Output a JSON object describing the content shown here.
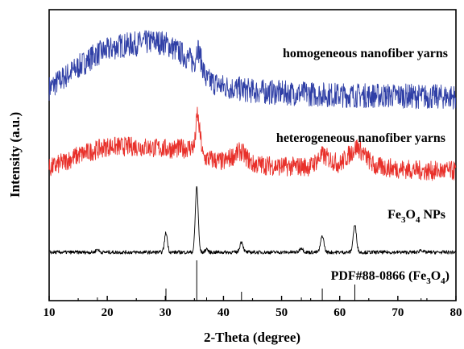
{
  "chart_data": {
    "type": "line",
    "xlabel": "2-Theta (degree)",
    "ylabel": "Intensity (a.u.)",
    "xlim": [
      10,
      80
    ],
    "x_ticks": [
      "10",
      "20",
      "30",
      "40",
      "50",
      "60",
      "70",
      "80"
    ],
    "grid": false,
    "legend": "none (series labelled inline above each trace)",
    "series": [
      {
        "name": "homogeneous nanofiber yarns",
        "name_parts": [
          {
            "t": "homogeneous nanofiber yarns",
            "sub": false
          }
        ],
        "color": "#2f3fa6",
        "noise_amplitude": 0.22,
        "x": [
          10,
          14,
          18,
          22,
          26,
          28,
          30,
          33,
          35,
          35.5,
          37,
          40,
          45,
          50,
          55,
          60,
          65,
          70,
          75,
          80
        ],
        "y": [
          0.15,
          0.45,
          0.75,
          0.9,
          0.95,
          0.98,
          0.95,
          0.75,
          0.6,
          0.9,
          0.3,
          0.18,
          0.1,
          0.07,
          0.05,
          0.03,
          0.02,
          0.02,
          0.0,
          0.0
        ]
      },
      {
        "name": "heterogeneous nanofiber yarns",
        "name_parts": [
          {
            "t": "heterogeneous nanofiber yarns",
            "sub": false
          }
        ],
        "color": "#e8302a",
        "noise_amplitude": 0.22,
        "x": [
          10,
          15,
          20,
          25,
          30,
          33,
          35,
          35.5,
          36.5,
          40,
          43,
          45,
          50,
          55,
          57,
          60,
          63,
          66,
          70,
          75,
          80
        ],
        "y": [
          0.05,
          0.35,
          0.55,
          0.55,
          0.5,
          0.5,
          0.55,
          1.3,
          0.3,
          0.2,
          0.45,
          0.15,
          0.1,
          0.1,
          0.35,
          0.15,
          0.55,
          0.1,
          0.05,
          0.0,
          0.0
        ]
      },
      {
        "name": "Fe3O4 NPs",
        "name_parts": [
          {
            "t": "Fe",
            "sub": false
          },
          {
            "t": "3",
            "sub": true
          },
          {
            "t": "O",
            "sub": false
          },
          {
            "t": "4",
            "sub": true
          },
          {
            "t": " NPs",
            "sub": false
          }
        ],
        "color": "#000000",
        "noise_amplitude": 0.06,
        "peaks": [
          {
            "x": 18.3,
            "h": 0.1,
            "w": 0.35
          },
          {
            "x": 30.1,
            "h": 0.65,
            "w": 0.35
          },
          {
            "x": 35.4,
            "h": 2.2,
            "w": 0.35
          },
          {
            "x": 37.1,
            "h": 0.12,
            "w": 0.3
          },
          {
            "x": 43.1,
            "h": 0.35,
            "w": 0.4
          },
          {
            "x": 53.4,
            "h": 0.15,
            "w": 0.4
          },
          {
            "x": 57.0,
            "h": 0.55,
            "w": 0.4
          },
          {
            "x": 62.6,
            "h": 0.9,
            "w": 0.4
          },
          {
            "x": 74.0,
            "h": 0.08,
            "w": 0.4
          }
        ]
      },
      {
        "name": "PDF#88-0866 (Fe3O4)",
        "name_parts": [
          {
            "t": "PDF#88-0866 (Fe",
            "sub": false
          },
          {
            "t": "3",
            "sub": true
          },
          {
            "t": "O",
            "sub": false
          },
          {
            "t": "4",
            "sub": true
          },
          {
            "t": ")",
            "sub": false
          }
        ],
        "color": "#000000",
        "type": "stick",
        "sticks": [
          {
            "x": 18.3,
            "i": 0.08
          },
          {
            "x": 30.1,
            "i": 0.3
          },
          {
            "x": 35.4,
            "i": 1.0
          },
          {
            "x": 37.1,
            "i": 0.08
          },
          {
            "x": 43.1,
            "i": 0.22
          },
          {
            "x": 53.4,
            "i": 0.08
          },
          {
            "x": 57.0,
            "i": 0.3
          },
          {
            "x": 62.6,
            "i": 0.4
          },
          {
            "x": 74.0,
            "i": 0.06
          }
        ]
      }
    ]
  }
}
